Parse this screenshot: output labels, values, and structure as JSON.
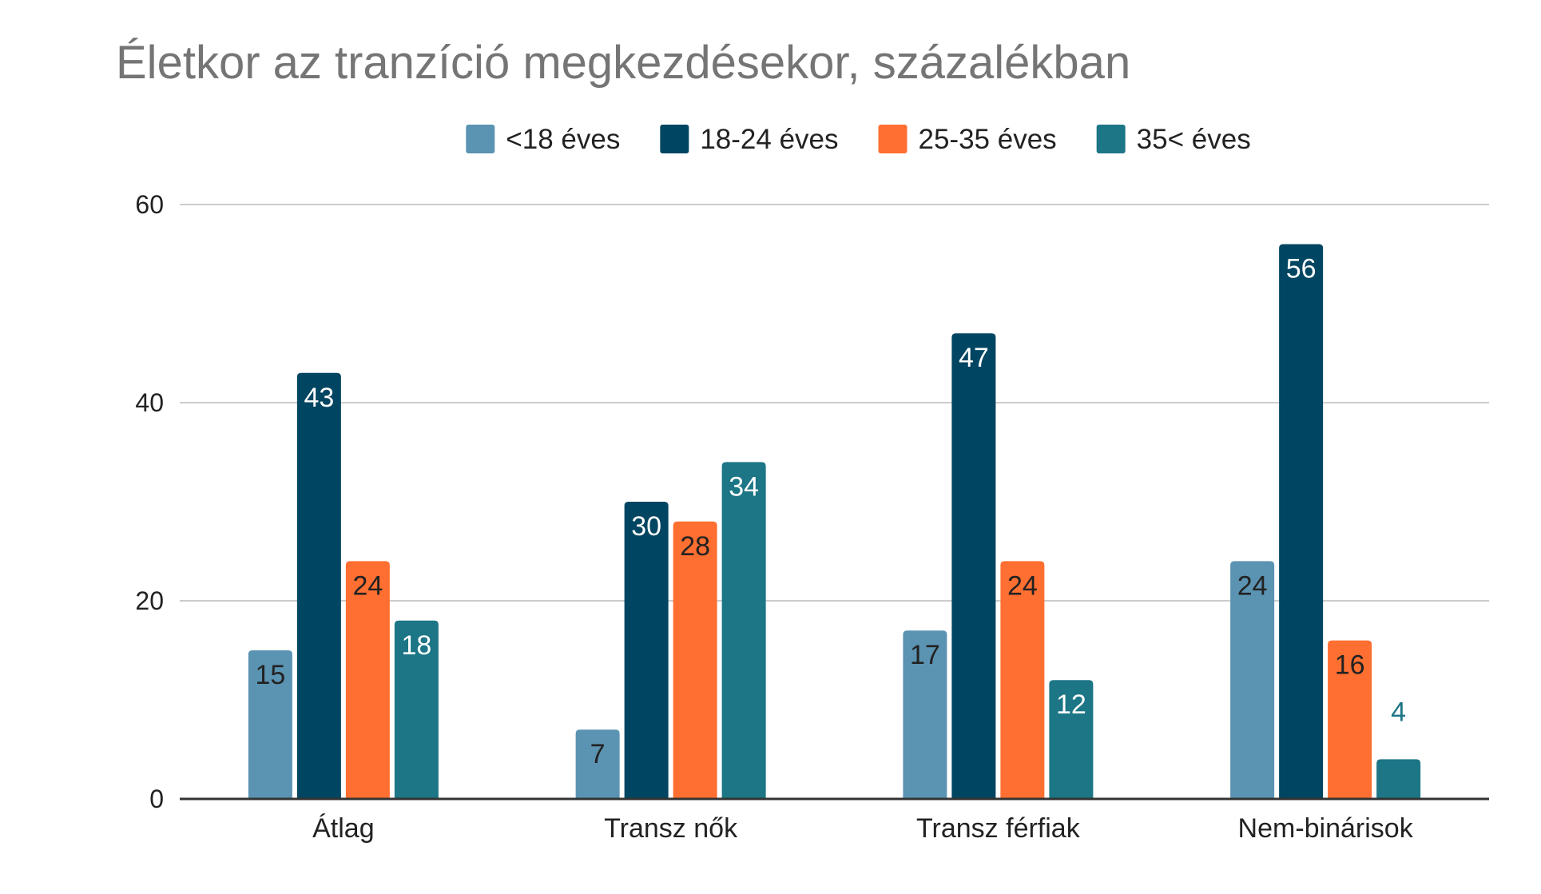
{
  "chart_data": {
    "type": "bar",
    "title": "Életkor az tranzíció megkezdésekor, százalékban",
    "xlabel": "",
    "ylabel": "",
    "ylim": [
      0,
      60
    ],
    "yticks": [
      "0",
      "20",
      "40",
      "60"
    ],
    "grid": true,
    "legend_position": "top",
    "categories": [
      "Átlag",
      "Transz nők",
      "Transz férfiak",
      "Nem-binárisok"
    ],
    "series": [
      {
        "name": "<18 éves",
        "color": "#5b93b2",
        "label_color": "#222222",
        "values": [
          15,
          7,
          17,
          24
        ]
      },
      {
        "name": "18-24 éves",
        "color": "#004561",
        "label_color": "#ffffff",
        "values": [
          43,
          30,
          47,
          56
        ]
      },
      {
        "name": "25-35 éves",
        "color": "#ff6f31",
        "label_color": "#222222",
        "values": [
          24,
          28,
          24,
          16
        ]
      },
      {
        "name": "35< éves",
        "color": "#1c7685",
        "label_color": "#ffffff",
        "values": [
          18,
          34,
          12,
          4
        ]
      }
    ],
    "outside_label_color": "#1c7685"
  }
}
